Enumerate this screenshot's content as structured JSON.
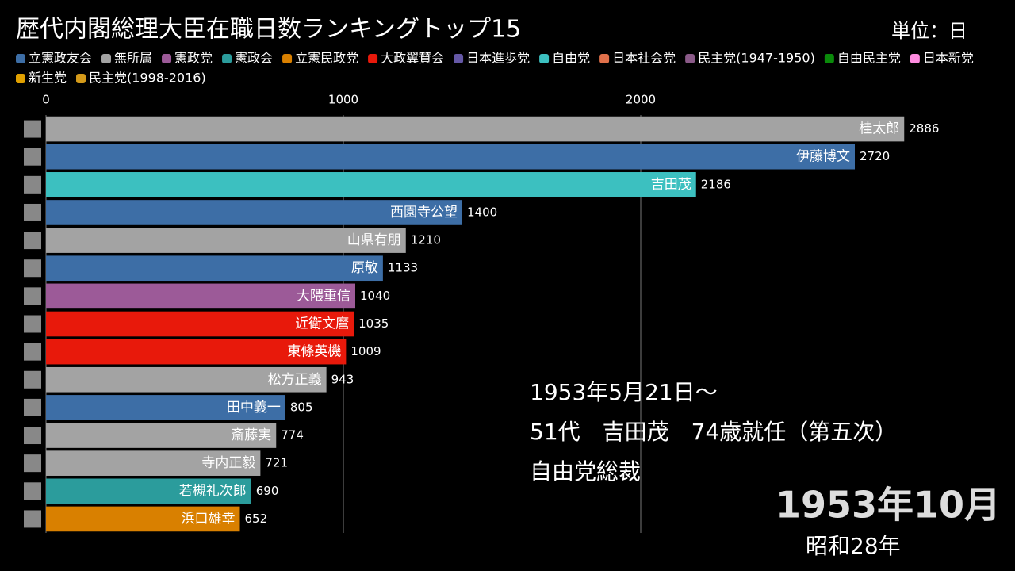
{
  "chart_data": {
    "type": "bar",
    "orientation": "horizontal",
    "title": "歴代内閣総理大臣在職日数ランキングトップ15",
    "unit_label": "単位：日",
    "legend": [
      {
        "name": "立憲政友会",
        "color": "#3d6ea6"
      },
      {
        "name": "無所属",
        "color": "#a3a3a3"
      },
      {
        "name": "憲政党",
        "color": "#9c5a98"
      },
      {
        "name": "憲政会",
        "color": "#2b9c9c"
      },
      {
        "name": "立憲民政党",
        "color": "#d98000"
      },
      {
        "name": "大政翼賛会",
        "color": "#e8190b"
      },
      {
        "name": "日本進歩党",
        "color": "#6558a6"
      },
      {
        "name": "自由党",
        "color": "#3cc0c0"
      },
      {
        "name": "日本社会党",
        "color": "#e0704a"
      },
      {
        "name": "民主党(1947-1950)",
        "color": "#8a5a88"
      },
      {
        "name": "自由民主党",
        "color": "#0a8a0a"
      },
      {
        "name": "日本新党",
        "color": "#ff8ce0"
      },
      {
        "name": "新生党",
        "color": "#e0a000"
      },
      {
        "name": "民主党(1998-2016)",
        "color": "#d49a1a"
      }
    ],
    "categories": [
      "桂太郎",
      "伊藤博文",
      "吉田茂",
      "西園寺公望",
      "山県有朋",
      "原敬",
      "大隈重信",
      "近衛文麿",
      "東條英機",
      "松方正義",
      "田中義一",
      "斎藤実",
      "寺内正毅",
      "若槻礼次郎",
      "浜口雄幸"
    ],
    "values": [
      2886,
      2720,
      2186,
      1400,
      1210,
      1133,
      1040,
      1035,
      1009,
      943,
      805,
      774,
      721,
      690,
      652
    ],
    "colors": [
      "#a3a3a3",
      "#3d6ea6",
      "#3cc0c0",
      "#3d6ea6",
      "#a3a3a3",
      "#3d6ea6",
      "#9c5a98",
      "#e8190b",
      "#e8190b",
      "#a3a3a3",
      "#3d6ea6",
      "#a3a3a3",
      "#a3a3a3",
      "#2b9c9c",
      "#d98000"
    ],
    "xlim": [
      0,
      3200
    ],
    "xticks": [
      0,
      1000,
      2000
    ],
    "grid": true,
    "annotations": [
      "1953年5月21日～",
      "51代　吉田茂　74歳就任（第五次）",
      "自由党総裁"
    ],
    "date_label": "1953年10月",
    "era_label": "昭和28年"
  }
}
